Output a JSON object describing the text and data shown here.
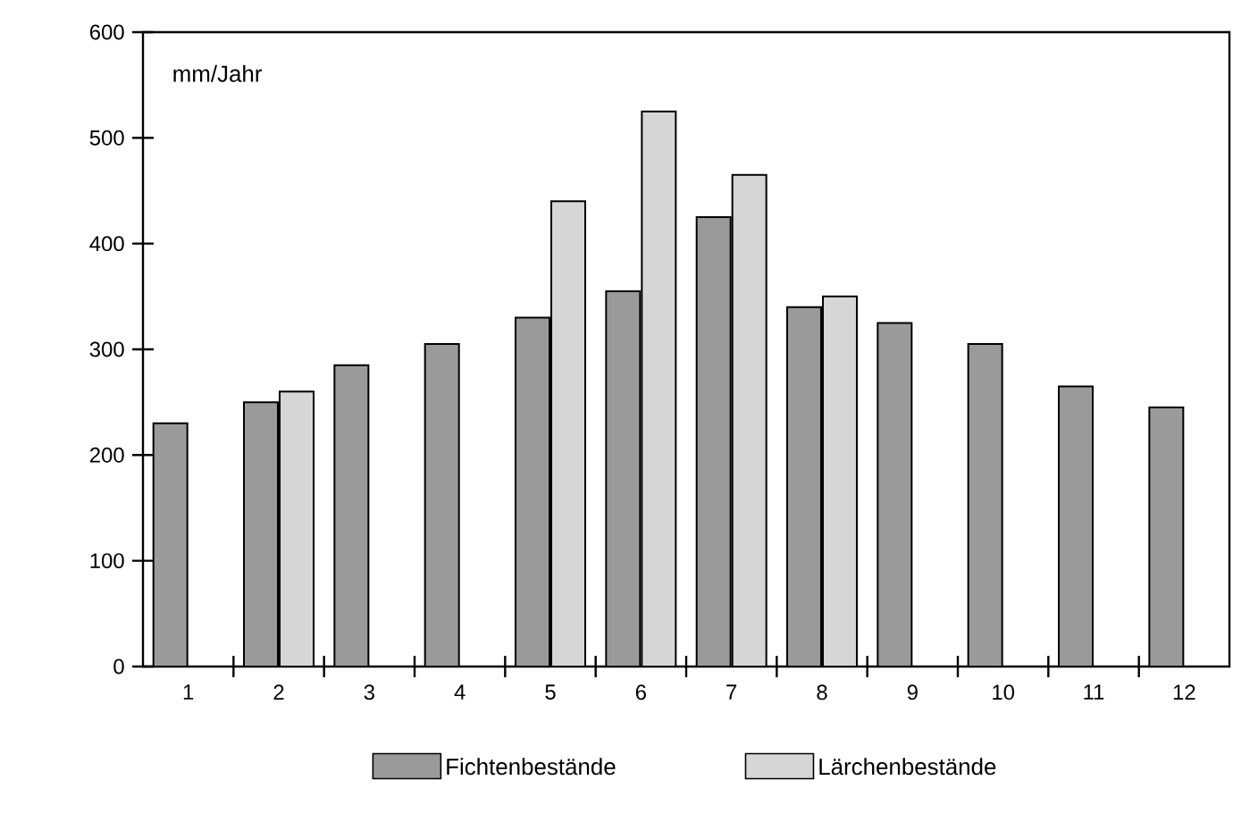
{
  "chart_data": {
    "type": "bar",
    "ylabel": "mm/Jahr",
    "categories": [
      "1",
      "2",
      "3",
      "4",
      "5",
      "6",
      "7",
      "8",
      "9",
      "10",
      "11",
      "12"
    ],
    "series": [
      {
        "name": "Fichtenbestände",
        "color": "#9a9a9a",
        "values": [
          230,
          250,
          285,
          305,
          330,
          355,
          425,
          340,
          325,
          305,
          265,
          245
        ]
      },
      {
        "name": "Lärchenbestände",
        "color": "#d6d6d6",
        "values": [
          null,
          260,
          null,
          null,
          440,
          525,
          465,
          350,
          null,
          null,
          null,
          null
        ]
      }
    ],
    "ylim": [
      0,
      600
    ],
    "yticks": [
      0,
      100,
      200,
      300,
      400,
      500,
      600
    ],
    "legend": "bottom",
    "grid": false
  }
}
